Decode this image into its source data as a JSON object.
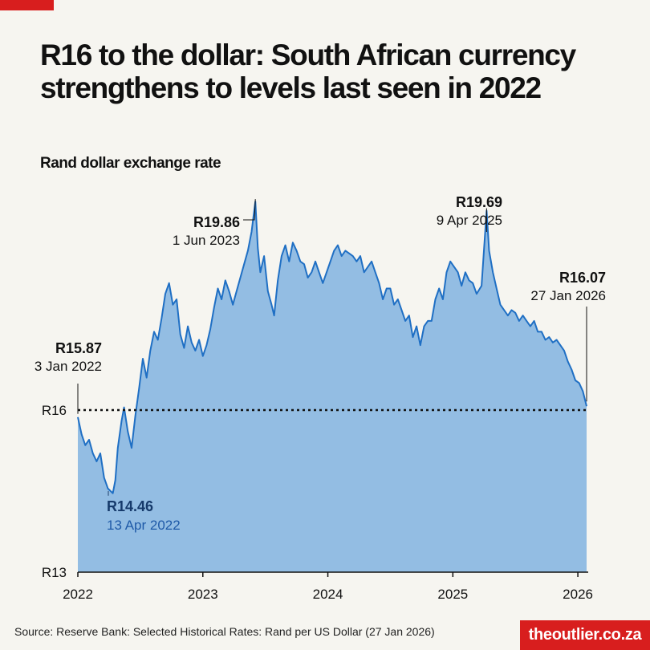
{
  "header": {
    "title": "R16 to the dollar: South African currency strengthens to levels last seen in 2022",
    "subtitle": "Rand dollar exchange rate"
  },
  "footer": {
    "source": "Source: Reserve Bank: Selected Historical Rates: Rand per US Dollar (27 Jan 2026)",
    "brand": "theoutlier.co.za"
  },
  "colors": {
    "accent": "#d81e1e",
    "line": "#1f6fc4",
    "area": "#93bde3",
    "background": "#f6f5f0"
  },
  "chart_data": {
    "type": "area",
    "title": "Rand dollar exchange rate",
    "xlabel": "",
    "ylabel": "",
    "x_ticks": [
      "2022",
      "2023",
      "2024",
      "2025",
      "2026"
    ],
    "y_ticks": [
      {
        "value": 16,
        "label": "R16"
      },
      {
        "value": 13,
        "label": "R13"
      }
    ],
    "xlim": [
      2022.0,
      2026.07
    ],
    "ylim": [
      13,
      20
    ],
    "reference_line": {
      "value": 16,
      "style": "dotted"
    },
    "series": [
      {
        "name": "Rand per US Dollar",
        "points": [
          [
            2022.0,
            15.87
          ],
          [
            2022.03,
            15.55
          ],
          [
            2022.06,
            15.35
          ],
          [
            2022.09,
            15.45
          ],
          [
            2022.12,
            15.2
          ],
          [
            2022.15,
            15.05
          ],
          [
            2022.18,
            15.2
          ],
          [
            2022.21,
            14.75
          ],
          [
            2022.24,
            14.55
          ],
          [
            2022.28,
            14.46
          ],
          [
            2022.3,
            14.7
          ],
          [
            2022.32,
            15.3
          ],
          [
            2022.35,
            15.8
          ],
          [
            2022.37,
            16.05
          ],
          [
            2022.4,
            15.6
          ],
          [
            2022.43,
            15.3
          ],
          [
            2022.46,
            15.9
          ],
          [
            2022.49,
            16.4
          ],
          [
            2022.52,
            16.95
          ],
          [
            2022.55,
            16.6
          ],
          [
            2022.58,
            17.1
          ],
          [
            2022.61,
            17.45
          ],
          [
            2022.64,
            17.3
          ],
          [
            2022.67,
            17.7
          ],
          [
            2022.7,
            18.15
          ],
          [
            2022.73,
            18.35
          ],
          [
            2022.76,
            17.95
          ],
          [
            2022.79,
            18.05
          ],
          [
            2022.82,
            17.4
          ],
          [
            2022.85,
            17.15
          ],
          [
            2022.88,
            17.55
          ],
          [
            2022.91,
            17.25
          ],
          [
            2022.94,
            17.1
          ],
          [
            2022.97,
            17.3
          ],
          [
            2023.0,
            17.0
          ],
          [
            2023.03,
            17.2
          ],
          [
            2023.06,
            17.5
          ],
          [
            2023.09,
            17.9
          ],
          [
            2023.12,
            18.25
          ],
          [
            2023.15,
            18.05
          ],
          [
            2023.18,
            18.4
          ],
          [
            2023.21,
            18.2
          ],
          [
            2023.24,
            17.95
          ],
          [
            2023.27,
            18.2
          ],
          [
            2023.3,
            18.45
          ],
          [
            2023.33,
            18.7
          ],
          [
            2023.36,
            18.95
          ],
          [
            2023.39,
            19.3
          ],
          [
            2023.42,
            19.86
          ],
          [
            2023.44,
            19.0
          ],
          [
            2023.46,
            18.55
          ],
          [
            2023.49,
            18.85
          ],
          [
            2023.52,
            18.2
          ],
          [
            2023.55,
            17.95
          ],
          [
            2023.57,
            17.75
          ],
          [
            2023.6,
            18.4
          ],
          [
            2023.63,
            18.85
          ],
          [
            2023.66,
            19.05
          ],
          [
            2023.69,
            18.75
          ],
          [
            2023.72,
            19.1
          ],
          [
            2023.75,
            18.95
          ],
          [
            2023.78,
            18.75
          ],
          [
            2023.81,
            18.7
          ],
          [
            2023.84,
            18.45
          ],
          [
            2023.87,
            18.55
          ],
          [
            2023.9,
            18.75
          ],
          [
            2023.93,
            18.55
          ],
          [
            2023.96,
            18.35
          ],
          [
            2023.99,
            18.55
          ],
          [
            2024.02,
            18.75
          ],
          [
            2024.05,
            18.95
          ],
          [
            2024.08,
            19.05
          ],
          [
            2024.11,
            18.85
          ],
          [
            2024.14,
            18.95
          ],
          [
            2024.17,
            18.9
          ],
          [
            2024.2,
            18.85
          ],
          [
            2024.23,
            18.75
          ],
          [
            2024.26,
            18.85
          ],
          [
            2024.29,
            18.55
          ],
          [
            2024.32,
            18.65
          ],
          [
            2024.35,
            18.75
          ],
          [
            2024.38,
            18.55
          ],
          [
            2024.41,
            18.35
          ],
          [
            2024.44,
            18.05
          ],
          [
            2024.47,
            18.25
          ],
          [
            2024.5,
            18.25
          ],
          [
            2024.53,
            17.95
          ],
          [
            2024.56,
            18.05
          ],
          [
            2024.59,
            17.85
          ],
          [
            2024.62,
            17.65
          ],
          [
            2024.65,
            17.75
          ],
          [
            2024.68,
            17.35
          ],
          [
            2024.71,
            17.55
          ],
          [
            2024.74,
            17.2
          ],
          [
            2024.77,
            17.55
          ],
          [
            2024.8,
            17.65
          ],
          [
            2024.83,
            17.65
          ],
          [
            2024.86,
            18.05
          ],
          [
            2024.89,
            18.25
          ],
          [
            2024.92,
            18.05
          ],
          [
            2024.95,
            18.55
          ],
          [
            2024.98,
            18.75
          ],
          [
            2025.01,
            18.65
          ],
          [
            2025.04,
            18.55
          ],
          [
            2025.07,
            18.3
          ],
          [
            2025.1,
            18.55
          ],
          [
            2025.13,
            18.4
          ],
          [
            2025.16,
            18.35
          ],
          [
            2025.19,
            18.15
          ],
          [
            2025.23,
            18.3
          ],
          [
            2025.27,
            19.69
          ],
          [
            2025.29,
            18.95
          ],
          [
            2025.32,
            18.55
          ],
          [
            2025.35,
            18.25
          ],
          [
            2025.38,
            17.95
          ],
          [
            2025.41,
            17.85
          ],
          [
            2025.44,
            17.75
          ],
          [
            2025.47,
            17.85
          ],
          [
            2025.5,
            17.8
          ],
          [
            2025.53,
            17.65
          ],
          [
            2025.56,
            17.75
          ],
          [
            2025.59,
            17.65
          ],
          [
            2025.62,
            17.55
          ],
          [
            2025.65,
            17.65
          ],
          [
            2025.68,
            17.45
          ],
          [
            2025.71,
            17.45
          ],
          [
            2025.74,
            17.3
          ],
          [
            2025.77,
            17.35
          ],
          [
            2025.8,
            17.25
          ],
          [
            2025.83,
            17.3
          ],
          [
            2025.86,
            17.2
          ],
          [
            2025.89,
            17.1
          ],
          [
            2025.92,
            16.9
          ],
          [
            2025.95,
            16.75
          ],
          [
            2025.98,
            16.55
          ],
          [
            2026.01,
            16.5
          ],
          [
            2026.04,
            16.35
          ],
          [
            2026.07,
            16.07
          ]
        ]
      }
    ],
    "annotations": [
      {
        "value": "R15.87",
        "date": "3 Jan 2022"
      },
      {
        "value": "R14.46",
        "date": "13 Apr 2022"
      },
      {
        "value": "R19.86",
        "date": "1 Jun 2023"
      },
      {
        "value": "R19.69",
        "date": "9 Apr 2025"
      },
      {
        "value": "R16.07",
        "date": "27 Jan 2026"
      }
    ]
  }
}
